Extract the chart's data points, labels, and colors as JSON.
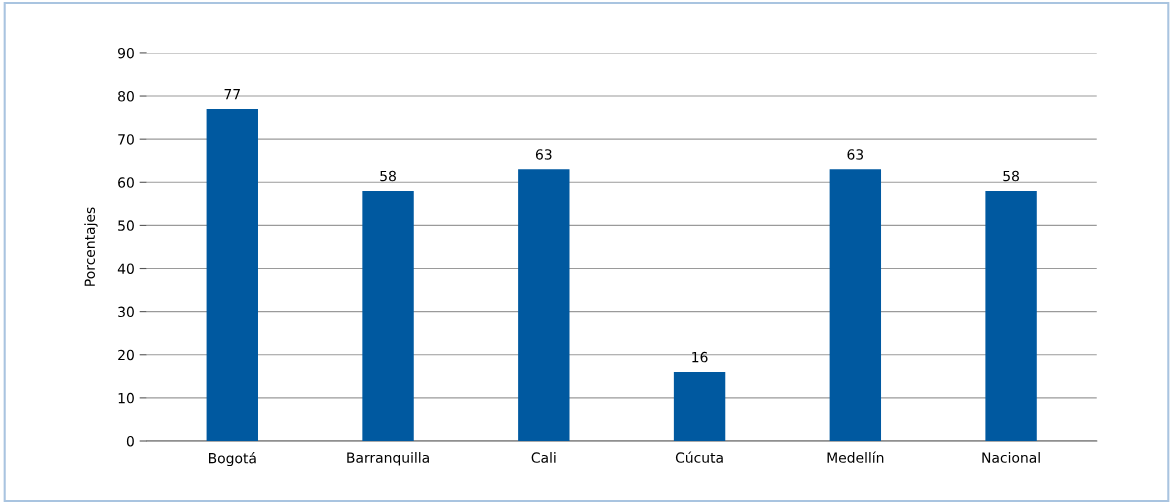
{
  "chart_data": {
    "type": "bar",
    "ylabel": "Porcentajes",
    "categories": [
      "Bogotá",
      "Barranquilla",
      "Cali",
      "Cúcuta",
      "Medellín",
      "Nacional"
    ],
    "values": [
      77,
      58,
      63,
      16,
      63,
      58
    ],
    "color": "#0059a0",
    "ylim": [
      0,
      90
    ],
    "yticks": [
      0,
      10,
      20,
      30,
      40,
      50,
      60,
      70,
      80,
      90
    ],
    "grid": "y",
    "data_labels": true
  }
}
